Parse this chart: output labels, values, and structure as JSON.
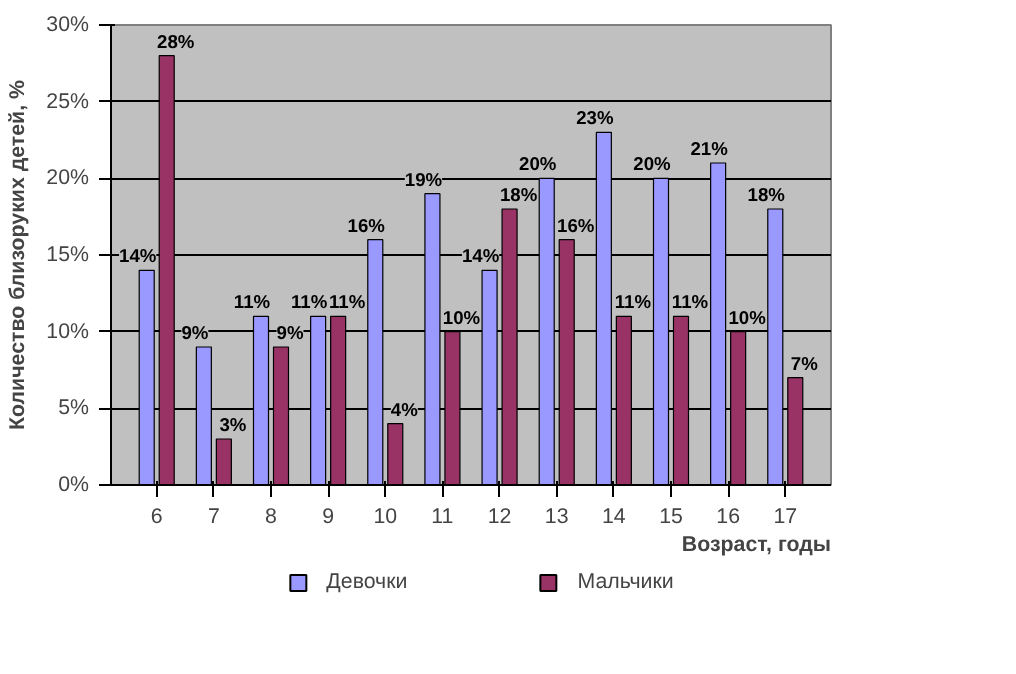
{
  "chart_data": {
    "type": "bar",
    "xlabel": "Возраст, годы",
    "ylabel": "Количество близоруких детей, %",
    "categories": [
      "6",
      "7",
      "8",
      "9",
      "10",
      "11",
      "12",
      "13",
      "14",
      "15",
      "16",
      "17"
    ],
    "series": [
      {
        "name": "Девочки",
        "color": "#9999ff",
        "values": [
          14,
          9,
          11,
          11,
          16,
          19,
          14,
          20,
          23,
          20,
          21,
          18
        ],
        "value_labels": [
          "14%",
          "9%",
          "11%",
          "11%",
          "16%",
          "19%",
          "14%",
          "20%",
          "23%",
          "20%",
          "21%",
          "18%"
        ]
      },
      {
        "name": "Мальчики",
        "color": "#993366",
        "values": [
          28,
          3,
          9,
          11,
          4,
          10,
          18,
          16,
          11,
          11,
          10,
          7
        ],
        "value_labels": [
          "28%",
          "3%",
          "9%",
          "11%",
          "4%",
          "10%",
          "18%",
          "16%",
          "11%",
          "11%",
          "10%",
          "7%"
        ]
      }
    ],
    "ylim": [
      0,
      30
    ],
    "yticks": [
      {
        "value": 0,
        "label": "0%"
      },
      {
        "value": 5,
        "label": "5%"
      },
      {
        "value": 10,
        "label": "10%"
      },
      {
        "value": 15,
        "label": "15%"
      },
      {
        "value": 20,
        "label": "20%"
      },
      {
        "value": 25,
        "label": "25%"
      },
      {
        "value": 30,
        "label": "30%"
      }
    ],
    "grid": "y",
    "legend": "bottom"
  }
}
